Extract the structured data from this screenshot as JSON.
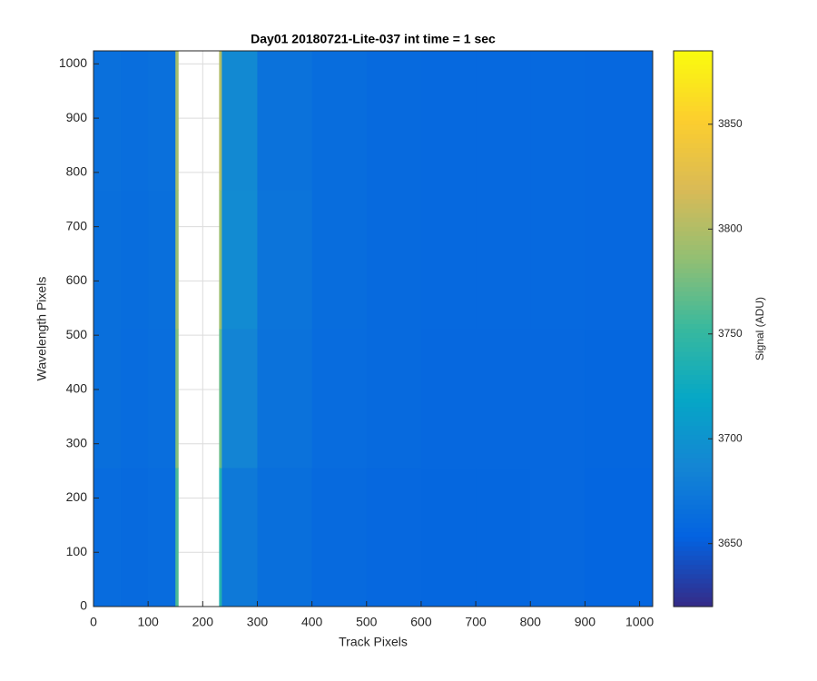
{
  "chart_data": {
    "type": "heatmap",
    "title": "Day01 20180721-Lite-037 int time = 1 sec",
    "x_label": "Track Pixels",
    "y_label": "Wavelength Pixels",
    "x_edges": [
      0,
      50,
      100,
      150,
      155,
      230,
      235,
      300,
      400,
      500,
      600,
      700,
      800,
      900,
      1024
    ],
    "y_edges": [
      0,
      256,
      512,
      768,
      1024
    ],
    "values": [
      [
        3662,
        3660,
        3662,
        3760,
        null,
        3740,
        3675,
        3665,
        3660,
        3658,
        3657,
        3657,
        3658,
        3656
      ],
      [
        3665,
        3662,
        3664,
        3780,
        null,
        3770,
        3685,
        3668,
        3662,
        3660,
        3658,
        3658,
        3658,
        3657
      ],
      [
        3665,
        3663,
        3665,
        3790,
        null,
        3790,
        3692,
        3670,
        3663,
        3660,
        3659,
        3659,
        3659,
        3658
      ],
      [
        3666,
        3664,
        3666,
        3795,
        null,
        3800,
        3690,
        3668,
        3663,
        3660,
        3659,
        3659,
        3659,
        3658
      ]
    ],
    "xlim": [
      0,
      1024
    ],
    "ylim": [
      0,
      1024
    ],
    "xticks": [
      0,
      100,
      200,
      300,
      400,
      500,
      600,
      700,
      800,
      900,
      1000
    ],
    "yticks": [
      0,
      100,
      200,
      300,
      400,
      500,
      600,
      700,
      800,
      900,
      1000
    ],
    "grid": true,
    "colormap": "parula",
    "clim": [
      3620,
      3885
    ],
    "cticks": [
      3650,
      3700,
      3750,
      3800,
      3850
    ],
    "colorbar_label": "Signal (ADU)"
  }
}
